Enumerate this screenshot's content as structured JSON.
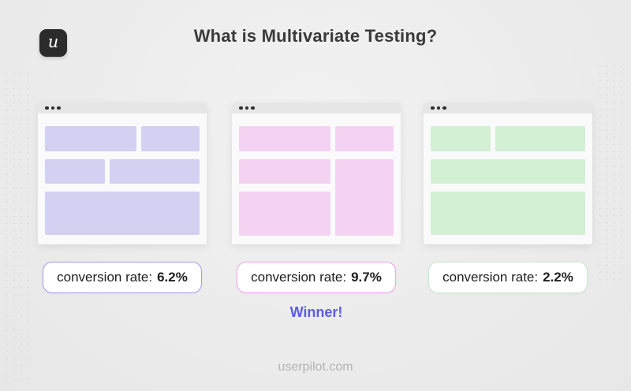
{
  "header": {
    "logo_glyph": "u",
    "title": "What is Multivariate Testing?"
  },
  "variants": [
    {
      "name": "variant-a",
      "block_color": "#d3d0f1",
      "border_color": "#9e9ff2",
      "conversion_label": "conversion rate:",
      "conversion_value": "6.2%",
      "winner": false
    },
    {
      "name": "variant-b",
      "block_color": "#f3d3f1",
      "border_color": "#efa3eb",
      "conversion_label": "conversion rate:",
      "conversion_value": "9.7%",
      "winner": true
    },
    {
      "name": "variant-c",
      "block_color": "#d3f0d5",
      "border_color": "#c9ecca",
      "conversion_label": "conversion rate:",
      "conversion_value": "2.2%",
      "winner": false
    }
  ],
  "winner": {
    "label": "Winner!",
    "color": "#5b5ce6"
  },
  "footer": {
    "text": "userpilot.com"
  }
}
